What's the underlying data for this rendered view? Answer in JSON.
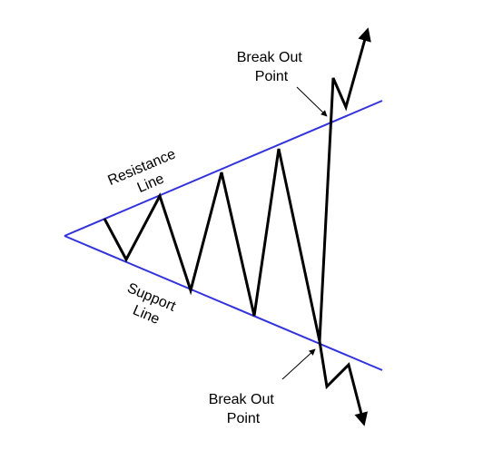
{
  "labels": {
    "break_out_top": [
      "Break Out",
      "Point"
    ],
    "break_out_bottom": [
      "Break Out",
      "Point"
    ],
    "resistance": [
      "Resistance",
      "Line"
    ],
    "support": [
      "Support",
      "Line"
    ]
  },
  "colors": {
    "trend_lines": "#3333dd",
    "price_path": "#000000",
    "text": "#000000",
    "background": "#ffffff"
  }
}
